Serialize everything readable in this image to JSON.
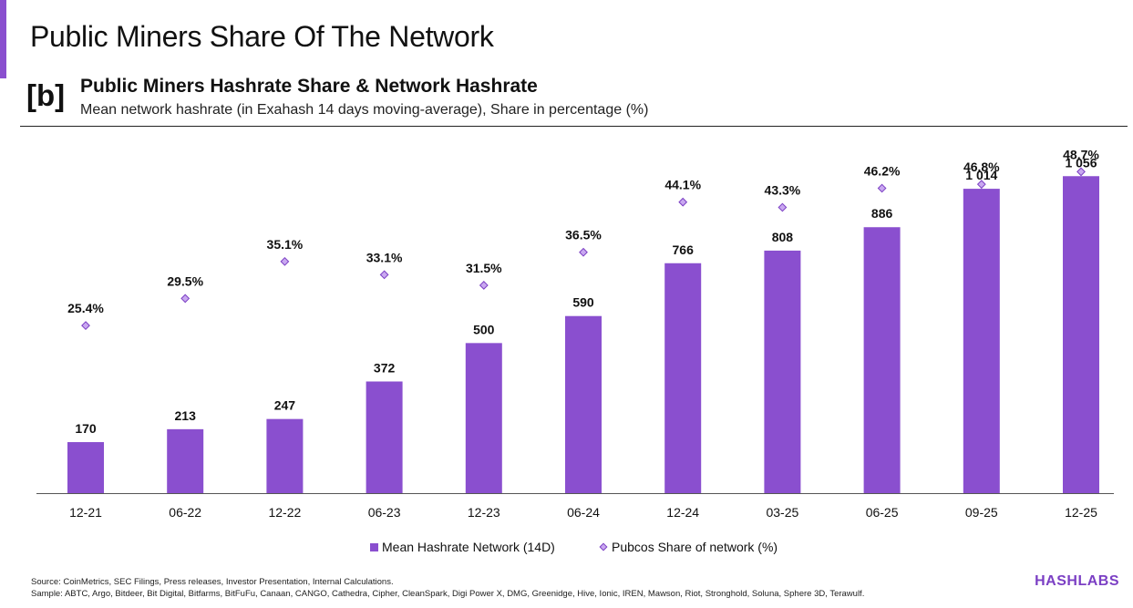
{
  "page": {
    "title": "Public Miners Share Of The Network",
    "panel_tag": "[b]",
    "brand": "HASHLABS"
  },
  "colors": {
    "accent": "#8a4fcf",
    "bar": "#8a4fcf",
    "marker_fill": "#c9a8f0",
    "marker_stroke": "#7b3fc4",
    "brand": "#7b3fc4"
  },
  "chart_data": {
    "type": "bar",
    "title": "Public Miners Hashrate Share & Network Hashrate",
    "subtitle": "Mean network hashrate (in Exahash 14 days moving-average), Share in percentage (%)",
    "categories": [
      "12-21",
      "06-22",
      "12-22",
      "06-23",
      "12-23",
      "06-24",
      "12-24",
      "03-25",
      "06-25",
      "09-25",
      "12-25"
    ],
    "series": [
      {
        "name": "Mean Hashrate Network (14D)",
        "kind": "bar",
        "values": [
          170,
          213,
          247,
          372,
          500,
          590,
          766,
          808,
          886,
          1014,
          1056
        ],
        "labels": [
          "170",
          "213",
          "247",
          "372",
          "500",
          "590",
          "766",
          "808",
          "886",
          "1 014",
          "1 056"
        ]
      },
      {
        "name": "Pubcos Share of network (%)",
        "kind": "marker",
        "values": [
          25.4,
          29.5,
          35.1,
          33.1,
          31.5,
          36.5,
          44.1,
          43.3,
          46.2,
          46.8,
          48.7
        ],
        "labels": [
          "25.4%",
          "29.5%",
          "35.1%",
          "33.1%",
          "31.5%",
          "36.5%",
          "44.1%",
          "43.3%",
          "46.2%",
          "46.8%",
          "48.7%"
        ]
      }
    ],
    "ylim_left": [
      0,
      1100
    ],
    "ylim_right": [
      0,
      60
    ],
    "legend": {
      "position": "bottom-center",
      "bar_label": "Mean Hashrate Network (14D)",
      "marker_label": "Pubcos Share of network (%)"
    },
    "grid": false
  },
  "footnotes": {
    "source": "Source: CoinMetrics, SEC Filings, Press releases, Investor Presentation, Internal Calculations.",
    "sample": "Sample: ABTC, Argo, Bitdeer, Bit Digital, Bitfarms, BitFuFu, Canaan, CANGO, Cathedra, Cipher, CleanSpark, Digi Power X, DMG, Greenidge, Hive, Ionic, IREN, Mawson, Riot, Stronghold, Soluna, Sphere 3D, Terawulf."
  }
}
